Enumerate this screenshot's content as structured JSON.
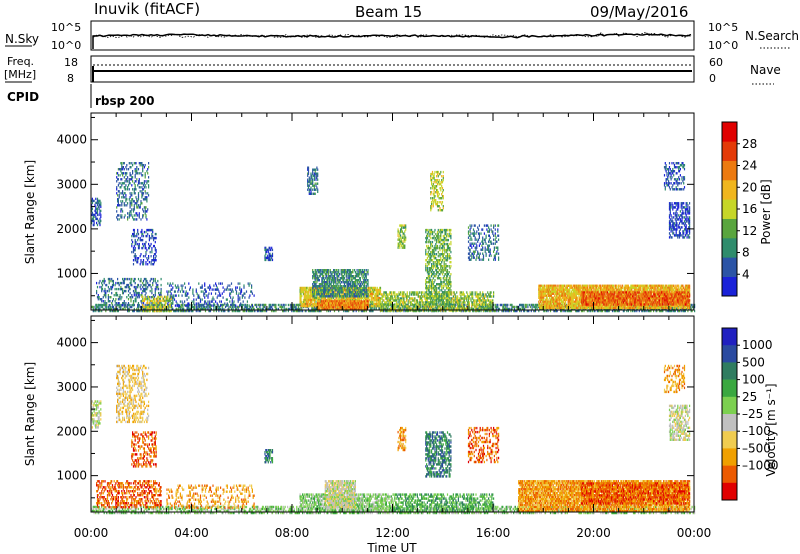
{
  "header": {
    "station": "Inuvik (fitACF)",
    "beam": "Beam 15",
    "date": "09/May/2016"
  },
  "top_panel": {
    "nsky_label": "N.Sky",
    "nsky_ticks": [
      "10^5",
      "10^0"
    ],
    "nsearch_label": "N.Search",
    "nsearch_ticks": [
      "10^5",
      "10^0"
    ],
    "freq_label": "Freq.",
    "freq_unit": "[MHz]",
    "freq_ticks": [
      "18",
      "8"
    ],
    "nave_label": "Nave",
    "nave_ticks": [
      "60",
      "0"
    ],
    "cpid_label": "CPID",
    "cpid_value": "rbsp 200"
  },
  "x_axis": {
    "label": "Time UT",
    "ticks": [
      "00:00",
      "04:00",
      "08:00",
      "12:00",
      "16:00",
      "20:00",
      "00:00"
    ],
    "range_hours": [
      0,
      24
    ]
  },
  "colors": {
    "power": [
      "#1a22d8",
      "#2b54a6",
      "#2f8c6c",
      "#59a53e",
      "#c6d628",
      "#f0b61e",
      "#ec7a10",
      "#e43a08",
      "#e00000"
    ],
    "velocity": [
      "#e00000",
      "#ec5a00",
      "#f0a000",
      "#f0cc50",
      "#c0c0c0",
      "#7cd050",
      "#3aa840",
      "#2f7c60",
      "#2a4aa0",
      "#2020c0"
    ]
  },
  "chart_data": [
    {
      "type": "heatmap",
      "panel": "power",
      "ylabel": "Slant Range [km]",
      "yticks": [
        1000,
        2000,
        3000,
        4000
      ],
      "ylim": [
        180,
        4600
      ],
      "xlim": [
        0,
        24
      ],
      "colorbar": {
        "label": "Power [dB]",
        "ticks": [
          4,
          8,
          12,
          16,
          20,
          24,
          28
        ],
        "range": [
          0,
          32
        ]
      },
      "regions": [
        {
          "t": [
            0.0,
            24.0
          ],
          "r": [
            180,
            320
          ],
          "v": 12,
          "d": 0.55
        },
        {
          "t": [
            0.2,
            2.8
          ],
          "r": [
            300,
            900
          ],
          "v": 10,
          "d": 0.3
        },
        {
          "t": [
            3.0,
            6.5
          ],
          "r": [
            300,
            800
          ],
          "v": 8,
          "d": 0.2
        },
        {
          "t": [
            2.0,
            3.2
          ],
          "r": [
            180,
            500
          ],
          "v": 20,
          "d": 0.5
        },
        {
          "t": [
            8.3,
            11.5
          ],
          "r": [
            280,
            700
          ],
          "v": 22,
          "d": 0.85
        },
        {
          "t": [
            8.8,
            11.0
          ],
          "r": [
            500,
            1100
          ],
          "v": 12,
          "d": 0.65
        },
        {
          "t": [
            9.0,
            11.0
          ],
          "r": [
            180,
            400
          ],
          "v": 28,
          "d": 0.9
        },
        {
          "t": [
            11.5,
            16.0
          ],
          "r": [
            180,
            600
          ],
          "v": 18,
          "d": 0.55
        },
        {
          "t": [
            13.3,
            14.3
          ],
          "r": [
            300,
            2000
          ],
          "v": 16,
          "d": 0.5
        },
        {
          "t": [
            13.5,
            14.0
          ],
          "r": [
            2400,
            3300
          ],
          "v": 20,
          "d": 0.35
        },
        {
          "t": [
            17.8,
            23.8
          ],
          "r": [
            250,
            750
          ],
          "v": 24,
          "d": 0.85
        },
        {
          "t": [
            19.5,
            23.8
          ],
          "r": [
            300,
            600
          ],
          "v": 30,
          "d": 0.75
        },
        {
          "t": [
            1.0,
            2.3
          ],
          "r": [
            2200,
            3500
          ],
          "v": 10,
          "d": 0.3
        },
        {
          "t": [
            0.0,
            0.4
          ],
          "r": [
            2100,
            2700
          ],
          "v": 8,
          "d": 0.5
        },
        {
          "t": [
            1.6,
            2.6
          ],
          "r": [
            1200,
            2000
          ],
          "v": 6,
          "d": 0.3
        },
        {
          "t": [
            6.9,
            7.2
          ],
          "r": [
            1300,
            1600
          ],
          "v": 8,
          "d": 0.6
        },
        {
          "t": [
            8.6,
            9.0
          ],
          "r": [
            2800,
            3400
          ],
          "v": 10,
          "d": 0.5
        },
        {
          "t": [
            12.2,
            12.5
          ],
          "r": [
            1600,
            2100
          ],
          "v": 18,
          "d": 0.5
        },
        {
          "t": [
            15.0,
            16.2
          ],
          "r": [
            1300,
            2100
          ],
          "v": 10,
          "d": 0.3
        },
        {
          "t": [
            23.0,
            23.8
          ],
          "r": [
            1800,
            2600
          ],
          "v": 6,
          "d": 0.45
        },
        {
          "t": [
            22.8,
            23.6
          ],
          "r": [
            2900,
            3500
          ],
          "v": 8,
          "d": 0.3
        }
      ]
    },
    {
      "type": "heatmap",
      "panel": "velocity",
      "ylabel": "Slant Range [km]",
      "yticks": [
        1000,
        2000,
        3000,
        4000
      ],
      "ylim": [
        180,
        4600
      ],
      "xlim": [
        0,
        24
      ],
      "colorbar": {
        "label": "Velocity [m s⁻¹]",
        "ticks": [
          "1000",
          "500",
          "100",
          "25",
          "–25",
          "–100",
          "–500",
          "–1000"
        ]
      },
      "regions": [
        {
          "t": [
            0.0,
            24.0
          ],
          "r": [
            180,
            320
          ],
          "v": 5,
          "d": 0.5
        },
        {
          "t": [
            0.2,
            2.8
          ],
          "r": [
            300,
            900
          ],
          "v": 1,
          "d": 0.4
        },
        {
          "t": [
            3.0,
            6.5
          ],
          "r": [
            300,
            800
          ],
          "v": 2,
          "d": 0.25
        },
        {
          "t": [
            8.3,
            12.0
          ],
          "r": [
            200,
            600
          ],
          "v": 5,
          "d": 0.6
        },
        {
          "t": [
            9.3,
            10.5
          ],
          "r": [
            300,
            900
          ],
          "v": 4,
          "d": 0.8
        },
        {
          "t": [
            12.0,
            16.0
          ],
          "r": [
            200,
            600
          ],
          "v": 6,
          "d": 0.45
        },
        {
          "t": [
            13.3,
            14.3
          ],
          "r": [
            1000,
            2000
          ],
          "v": 7,
          "d": 0.55
        },
        {
          "t": [
            17.0,
            23.8
          ],
          "r": [
            200,
            900
          ],
          "v": 2,
          "d": 0.85
        },
        {
          "t": [
            19.5,
            23.8
          ],
          "r": [
            400,
            850
          ],
          "v": 1,
          "d": 0.6
        },
        {
          "t": [
            1.0,
            2.3
          ],
          "r": [
            2200,
            3500
          ],
          "v": 3,
          "d": 0.35
        },
        {
          "t": [
            0.0,
            0.4
          ],
          "r": [
            2100,
            2700
          ],
          "v": 4,
          "d": 0.5
        },
        {
          "t": [
            1.6,
            2.6
          ],
          "r": [
            1200,
            2000
          ],
          "v": 1,
          "d": 0.35
        },
        {
          "t": [
            6.9,
            7.2
          ],
          "r": [
            1300,
            1600
          ],
          "v": 7,
          "d": 0.6
        },
        {
          "t": [
            12.2,
            12.5
          ],
          "r": [
            1600,
            2100
          ],
          "v": 2,
          "d": 0.5
        },
        {
          "t": [
            15.0,
            16.2
          ],
          "r": [
            1300,
            2100
          ],
          "v": 1,
          "d": 0.3
        },
        {
          "t": [
            23.0,
            23.8
          ],
          "r": [
            1800,
            2600
          ],
          "v": 4,
          "d": 0.5
        },
        {
          "t": [
            22.8,
            23.6
          ],
          "r": [
            2900,
            3500
          ],
          "v": 2,
          "d": 0.3
        }
      ]
    }
  ]
}
